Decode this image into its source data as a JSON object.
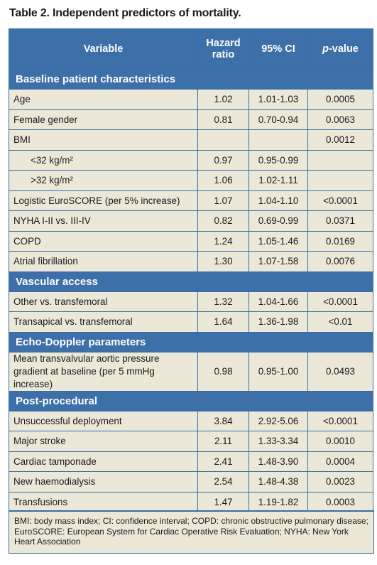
{
  "title": "Table 2. Independent predictors of mortality.",
  "headers": {
    "variable": "Variable",
    "hr": "Hazard ratio",
    "ci": "95% CI",
    "p_italic": "p",
    "p_rest": "-value"
  },
  "sections": [
    {
      "name": "Baseline patient characteristics",
      "rows": [
        {
          "variable": "Age",
          "hr": "1.02",
          "ci": "1.01-1.03",
          "p": "0.0005"
        },
        {
          "variable": "Female gender",
          "hr": "0.81",
          "ci": "0.70-0.94",
          "p": "0.0063"
        },
        {
          "variable": "BMI",
          "hr": "",
          "ci": "",
          "p": "0.0012"
        },
        {
          "variable": "<32 kg/m²",
          "hr": "0.97",
          "ci": "0.95-0.99",
          "p": "",
          "indent": true
        },
        {
          "variable": ">32 kg/m²",
          "hr": "1.06",
          "ci": "1.02-1.11",
          "p": "",
          "indent": true
        },
        {
          "variable": "Logistic EuroSCORE (per 5% increase)",
          "hr": "1.07",
          "ci": "1.04-1.10",
          "p": "<0.0001"
        },
        {
          "variable": "NYHA I-II vs. III-IV",
          "hr": "0.82",
          "ci": "0.69-0.99",
          "p": "0.0371"
        },
        {
          "variable": "COPD",
          "hr": "1.24",
          "ci": "1.05-1.46",
          "p": "0.0169"
        },
        {
          "variable": "Atrial fibrillation",
          "hr": "1.30",
          "ci": "1.07-1.58",
          "p": "0.0076"
        }
      ]
    },
    {
      "name": "Vascular access",
      "rows": [
        {
          "variable": "Other vs. transfemoral",
          "hr": "1.32",
          "ci": "1.04-1.66",
          "p": "<0.0001"
        },
        {
          "variable": "Transapical vs. transfemoral",
          "hr": "1.64",
          "ci": "1.36-1.98",
          "p": "<0.01"
        }
      ]
    },
    {
      "name": "Echo-Doppler parameters",
      "rows": [
        {
          "variable": "Mean transvalvular aortic pressure gradient at baseline (per 5 mmHg increase)",
          "hr": "0.98",
          "ci": "0.95-1.00",
          "p": "0.0493",
          "tall": true
        }
      ]
    },
    {
      "name": "Post-procedural",
      "rows": [
        {
          "variable": "Unsuccessful deployment",
          "hr": "3.84",
          "ci": "2.92-5.06",
          "p": "<0.0001"
        },
        {
          "variable": "Major stroke",
          "hr": "2.11",
          "ci": "1.33-3.34",
          "p": "0.0010"
        },
        {
          "variable": "Cardiac tamponade",
          "hr": "2.41",
          "ci": "1.48-3.90",
          "p": "0.0004"
        },
        {
          "variable": "New haemodialysis",
          "hr": "2.54",
          "ci": "1.48-4.38",
          "p": "0.0023"
        },
        {
          "variable": "Transfusions",
          "hr": "1.47",
          "ci": "1.19-1.82",
          "p": "0.0003"
        }
      ]
    }
  ],
  "footnote": "BMI: body mass index; CI: confidence interval; COPD: chronic obstructive pulmonary disease; EuroSCORE: European System for Cardiac Operative Risk Evaluation; NYHA: New York Heart Association",
  "colors": {
    "header_blue": "#3d6fa8",
    "row_beige": "#ebe8d8"
  }
}
